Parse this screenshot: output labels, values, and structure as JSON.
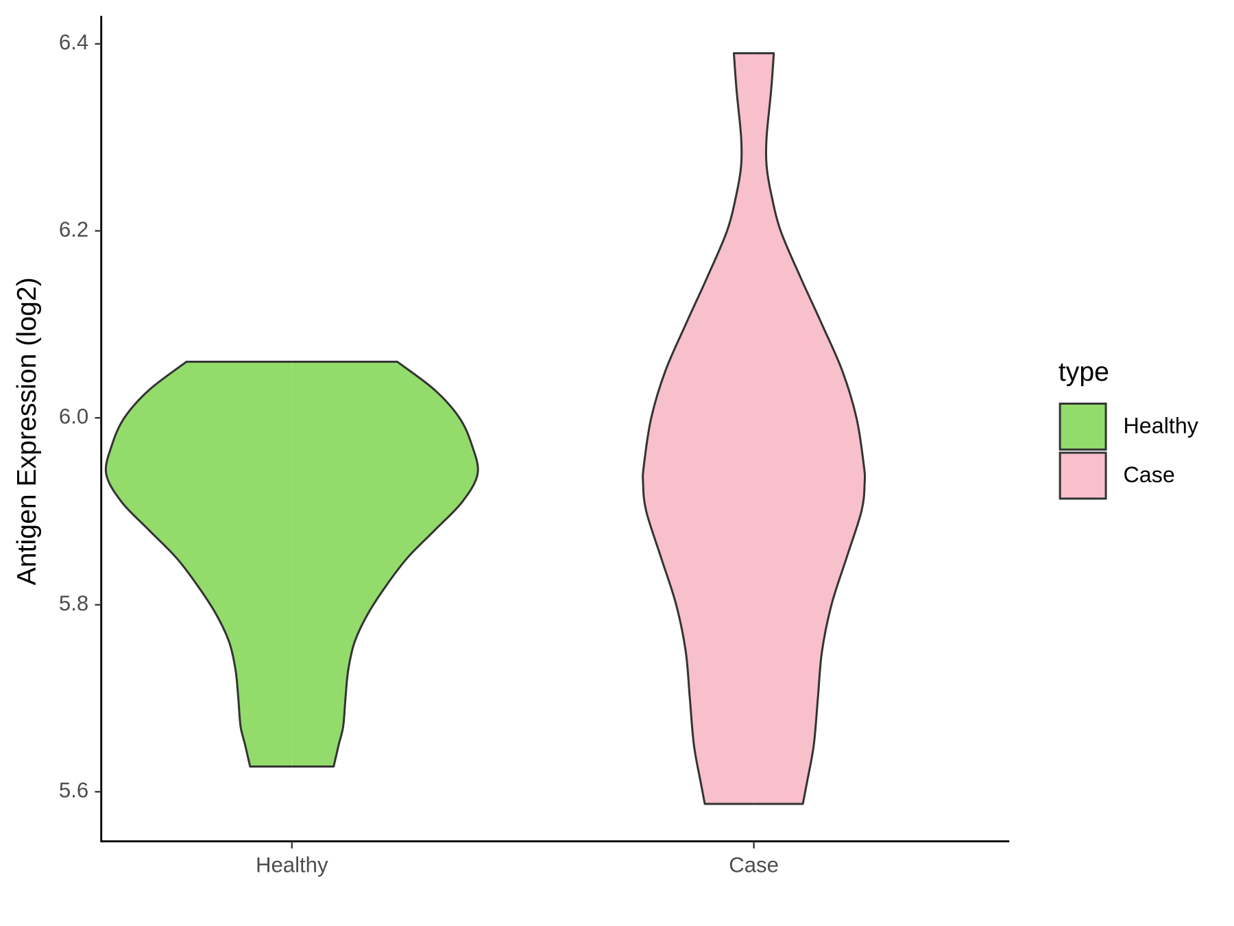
{
  "chart_data": {
    "type": "violin",
    "y_label": "Antigen Expression (log2)",
    "categories": [
      "Healthy",
      "Case"
    ],
    "ylim": [
      5.547,
      6.43
    ],
    "yticks": [
      {
        "value": 5.6,
        "label": "5.6"
      },
      {
        "value": 5.8,
        "label": "5.8"
      },
      {
        "value": 6.0,
        "label": "6.0"
      },
      {
        "value": 6.2,
        "label": "6.2"
      },
      {
        "value": 6.4,
        "label": "6.4"
      }
    ],
    "legend_title": "type",
    "legend_position": "right",
    "grid": false,
    "series": [
      {
        "name": "Healthy",
        "color": "#93dc6b",
        "y": [
          6.06,
          6.03,
          6.0,
          5.97,
          5.94,
          5.91,
          5.88,
          5.85,
          5.82,
          5.79,
          5.76,
          5.73,
          5.7,
          5.67,
          5.65,
          5.627
        ],
        "half_width": [
          0.232,
          0.314,
          0.369,
          0.397,
          0.409,
          0.375,
          0.315,
          0.254,
          0.207,
          0.167,
          0.138,
          0.124,
          0.118,
          0.113,
          0.103,
          0.092
        ]
      },
      {
        "name": "Case",
        "color": "#f7c0cb",
        "y": [
          6.39,
          6.35,
          6.3,
          6.27,
          6.24,
          6.2,
          6.15,
          6.1,
          6.05,
          6.0,
          5.95,
          5.93,
          5.9,
          5.85,
          5.8,
          5.75,
          5.7,
          5.65,
          5.61,
          5.587
        ],
        "half_width": [
          0.044,
          0.038,
          0.028,
          0.028,
          0.038,
          0.059,
          0.103,
          0.15,
          0.195,
          0.226,
          0.242,
          0.244,
          0.237,
          0.204,
          0.171,
          0.15,
          0.141,
          0.132,
          0.117,
          0.108
        ]
      }
    ]
  }
}
